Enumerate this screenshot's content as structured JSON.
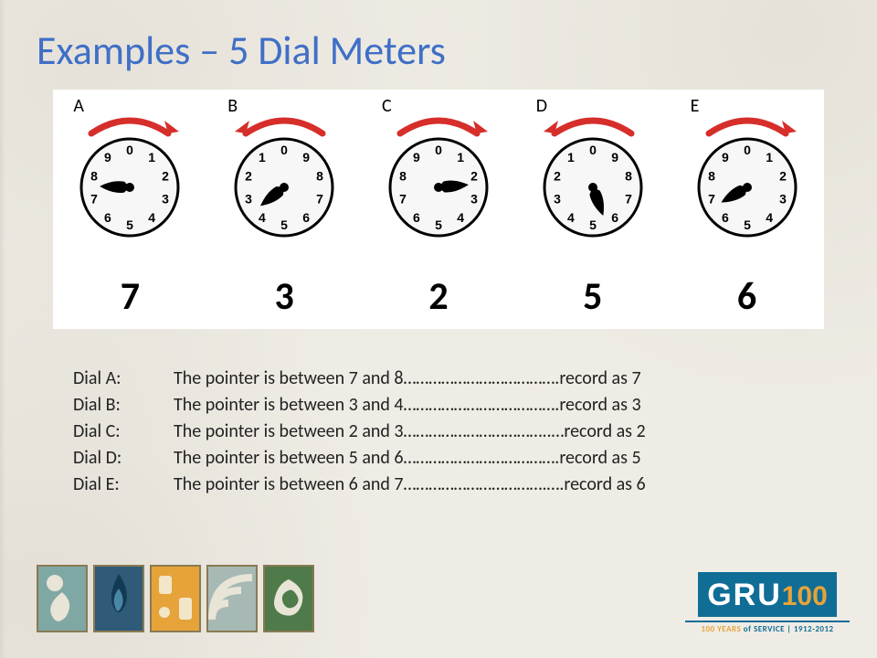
{
  "title": "Examples – 5 Dial Meters",
  "title_color": "#3f6fc7",
  "panel": {
    "background": "#ffffff"
  },
  "arrow": {
    "color": "#d62e2a",
    "stroke_width": 7
  },
  "dial_style": {
    "face_fill": "#f7f7f7",
    "face_stroke": "#000000",
    "face_stroke_width": 3,
    "number_fontsize": 14,
    "number_color": "#000000",
    "hand_color": "#000000",
    "hub_radius": 5
  },
  "dials": [
    {
      "id": "A",
      "label": "A",
      "direction": "cw",
      "numbers_cw": true,
      "reading": "7",
      "pointer_angle_deg": 272
    },
    {
      "id": "B",
      "label": "B",
      "direction": "ccw",
      "numbers_cw": false,
      "reading": "3",
      "pointer_angle_deg": 232
    },
    {
      "id": "C",
      "label": "C",
      "direction": "cw",
      "numbers_cw": true,
      "reading": "2",
      "pointer_angle_deg": 85
    },
    {
      "id": "D",
      "label": "D",
      "direction": "ccw",
      "numbers_cw": false,
      "reading": "5",
      "pointer_angle_deg": 160
    },
    {
      "id": "E",
      "label": "E",
      "direction": "cw",
      "numbers_cw": true,
      "reading": "6",
      "pointer_angle_deg": 240
    }
  ],
  "explanations": [
    {
      "label": "Dial A:",
      "text": "The pointer is between 7 and 8……………………………….record as 7"
    },
    {
      "label": "Dial B:",
      "text": "The pointer is between 3 and 4……………………………….record as 3"
    },
    {
      "label": "Dial C:",
      "text": "The pointer is between 2 and 3……………………………..…record as 2"
    },
    {
      "label": "Dial D:",
      "text": "The pointer is between 5 and 6……………………………….record as 5"
    },
    {
      "label": "Dial E:",
      "text": "The pointer is between 6 and 7…………………………….….record as 6"
    }
  ],
  "footer_badges": {
    "border_color": "#8a7a52",
    "items": [
      {
        "bg": "#7fa7a4"
      },
      {
        "bg": "#2f5a78"
      },
      {
        "bg": "#e6a33a"
      },
      {
        "bg": "#a7b9b4"
      },
      {
        "bg": "#4f7a4a"
      }
    ]
  },
  "logo": {
    "text_main": "GRU",
    "text_suffix": "100",
    "box_bg": "#0f6d96",
    "box_fg": "#ffffff",
    "suffix_color": "#e6a33a",
    "subtitle_prefix": "100 YEARS",
    "subtitle_mid": " of SERVICE | ",
    "subtitle_suffix": "1912-2012"
  }
}
